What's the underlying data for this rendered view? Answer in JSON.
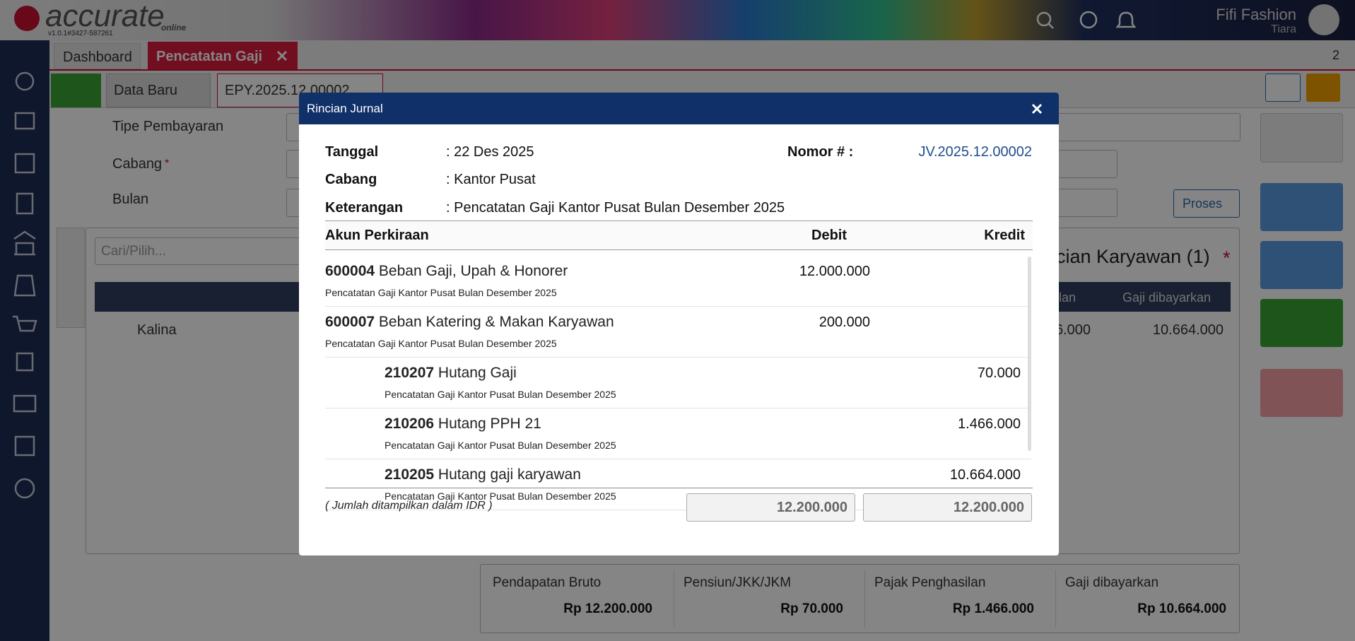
{
  "header": {
    "logo": "accurate",
    "logo_sub": "online",
    "version": "v1.0.1#3427-587261",
    "company": "Fifi Fashion",
    "user": "Tiara"
  },
  "tabs": [
    "Dashboard",
    "Pencatatan Gaji"
  ],
  "tab_count": "2",
  "subtabs": [
    "Data Baru",
    "EPY.2025.12.00002"
  ],
  "form": {
    "labels": [
      "Tipe Pembayaran",
      "Cabang",
      "Bulan"
    ],
    "required": "*",
    "search_placeholder": "Cari/Pilih...",
    "process_button": "Proses"
  },
  "employee_panel": {
    "title": "cian Karyawan (1)",
    "required": "*",
    "columns": [
      "ilan",
      "Gaji dibayarkan"
    ],
    "rows": [
      {
        "name": "Kalina",
        "values": [
          "6.000",
          "10.664.000"
        ]
      }
    ]
  },
  "summary": [
    {
      "label": "Pendapatan Bruto",
      "value": "Rp 12.200.000"
    },
    {
      "label": "Pensiun/JKK/JKM",
      "value": "Rp 70.000"
    },
    {
      "label": "Pajak Penghasilan",
      "value": "Rp 1.466.000"
    },
    {
      "label": "Gaji dibayarkan",
      "value": "Rp 10.664.000"
    }
  ],
  "modal": {
    "title": "Rincian Jurnal",
    "fields": [
      {
        "label": "Tanggal",
        "value": ": 22 Des 2025"
      },
      {
        "label": "Cabang",
        "value": ": Kantor Pusat"
      },
      {
        "label": "Keterangan",
        "value": ": Pencatatan Gaji Kantor Pusat Bulan Desember 2025"
      }
    ],
    "number": {
      "label": "Nomor # :",
      "value": "JV.2025.12.00002"
    },
    "columns": [
      "Akun Perkiraan",
      "Debit",
      "Kredit"
    ],
    "rows": [
      {
        "code": "600004",
        "name": "Beban Gaji, Upah & Honorer",
        "description": "Pencatatan Gaji Kantor Pusat Bulan Desember 2025",
        "debit": "12.000.000"
      },
      {
        "code": "600007",
        "name": "Beban Katering & Makan Karyawan",
        "description": "Pencatatan Gaji Kantor Pusat Bulan Desember 2025",
        "debit": "200.000"
      },
      {
        "code": "210207",
        "name": "Hutang Gaji",
        "description": "Pencatatan Gaji Kantor Pusat Bulan Desember 2025",
        "credit": "70.000"
      },
      {
        "code": "210206",
        "name": "Hutang PPH 21",
        "description": "Pencatatan Gaji Kantor Pusat Bulan Desember 2025",
        "credit": "1.466.000"
      },
      {
        "code": "210205",
        "name": "Hutang gaji karyawan",
        "description": "Pencatatan Gaji Kantor Pusat Bulan Desember 2025",
        "credit": "10.664.000"
      }
    ],
    "note": "( Jumlah ditampilkan dalam IDR )",
    "totals": [
      "12.200.000",
      "12.200.000"
    ]
  }
}
